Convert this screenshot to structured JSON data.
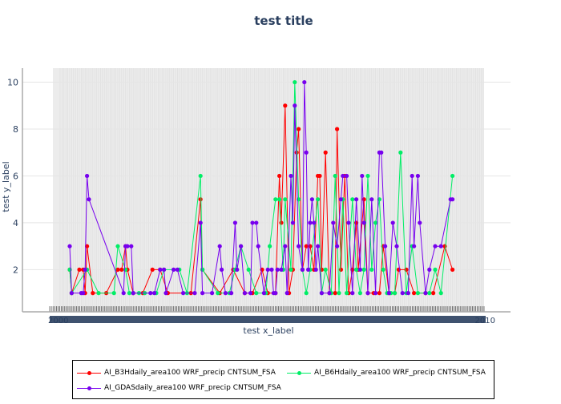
{
  "chart_data": {
    "type": "line",
    "title": "test title",
    "xlabel": "test x_label",
    "ylabel": "test y_label",
    "x_range": [
      0,
      220
    ],
    "ylim": [
      0.2,
      10.6
    ],
    "y_ticks": [
      2,
      4,
      6,
      8,
      10
    ],
    "x_tick_labels_visible": [
      "2000",
      "2010"
    ],
    "grid": true,
    "legend": "bottom, boxed",
    "series": [
      {
        "name": "AI_B3Hdaily_area100 WRF_precip CNTSUM_FSA",
        "color": "#ff0000",
        "points": [
          [
            5,
            2
          ],
          [
            6,
            1
          ],
          [
            10,
            2
          ],
          [
            12,
            2
          ],
          [
            13,
            1
          ],
          [
            14,
            3
          ],
          [
            17,
            1
          ],
          [
            24,
            1
          ],
          [
            30,
            2
          ],
          [
            32,
            2
          ],
          [
            34,
            3
          ],
          [
            35,
            2
          ],
          [
            38,
            1
          ],
          [
            43,
            1
          ],
          [
            48,
            2
          ],
          [
            52,
            2
          ],
          [
            56,
            1
          ],
          [
            68,
            1
          ],
          [
            73,
            5
          ],
          [
            74,
            2
          ],
          [
            83,
            1
          ],
          [
            90,
            2
          ],
          [
            96,
            1
          ],
          [
            100,
            1
          ],
          [
            105,
            2
          ],
          [
            108,
            1
          ],
          [
            112,
            1
          ],
          [
            114,
            6
          ],
          [
            115,
            4
          ],
          [
            117,
            9
          ],
          [
            119,
            1
          ],
          [
            121,
            2
          ],
          [
            123,
            7
          ],
          [
            124,
            8
          ],
          [
            126,
            2
          ],
          [
            128,
            3
          ],
          [
            130,
            3
          ],
          [
            132,
            2
          ],
          [
            134,
            6
          ],
          [
            135,
            6
          ],
          [
            136,
            2
          ],
          [
            138,
            7
          ],
          [
            140,
            1
          ],
          [
            143,
            1
          ],
          [
            144,
            8
          ],
          [
            146,
            2
          ],
          [
            148,
            6
          ],
          [
            150,
            1
          ],
          [
            152,
            2
          ],
          [
            154,
            4
          ],
          [
            155,
            2
          ],
          [
            158,
            5
          ],
          [
            160,
            1
          ],
          [
            163,
            1
          ],
          [
            166,
            1
          ],
          [
            168,
            3
          ],
          [
            171,
            1
          ],
          [
            174,
            1
          ],
          [
            176,
            2
          ],
          [
            180,
            2
          ],
          [
            184,
            1
          ],
          [
            190,
            1
          ],
          [
            194,
            1
          ],
          [
            200,
            3
          ],
          [
            204,
            2
          ]
        ]
      },
      {
        "name": "AI_B6Hdaily_area100 WRF_precip CNTSUM_FSA",
        "color": "#00ee66",
        "points": [
          [
            5,
            2
          ],
          [
            6,
            1
          ],
          [
            14,
            2
          ],
          [
            20,
            1
          ],
          [
            28,
            1
          ],
          [
            30,
            3
          ],
          [
            34,
            2
          ],
          [
            36,
            1
          ],
          [
            41,
            1
          ],
          [
            44,
            1
          ],
          [
            50,
            1
          ],
          [
            54,
            2
          ],
          [
            62,
            2
          ],
          [
            66,
            1
          ],
          [
            73,
            6
          ],
          [
            74,
            2
          ],
          [
            82,
            1
          ],
          [
            88,
            1
          ],
          [
            91,
            2
          ],
          [
            94,
            3
          ],
          [
            98,
            2
          ],
          [
            102,
            1
          ],
          [
            107,
            1
          ],
          [
            109,
            3
          ],
          [
            112,
            5
          ],
          [
            114,
            5
          ],
          [
            116,
            2
          ],
          [
            117,
            5
          ],
          [
            120,
            2
          ],
          [
            122,
            10
          ],
          [
            124,
            5
          ],
          [
            126,
            2
          ],
          [
            128,
            1
          ],
          [
            130,
            2
          ],
          [
            134,
            5
          ],
          [
            136,
            1
          ],
          [
            138,
            2
          ],
          [
            141,
            1
          ],
          [
            143,
            6
          ],
          [
            145,
            1
          ],
          [
            147,
            5
          ],
          [
            149,
            1
          ],
          [
            152,
            5
          ],
          [
            154,
            2
          ],
          [
            156,
            1
          ],
          [
            158,
            2
          ],
          [
            160,
            6
          ],
          [
            162,
            2
          ],
          [
            164,
            4
          ],
          [
            166,
            5
          ],
          [
            168,
            2
          ],
          [
            170,
            1
          ],
          [
            172,
            1
          ],
          [
            174,
            1
          ],
          [
            177,
            7
          ],
          [
            180,
            1
          ],
          [
            183,
            3
          ],
          [
            186,
            1
          ],
          [
            192,
            1
          ],
          [
            195,
            2
          ],
          [
            198,
            1
          ],
          [
            204,
            6
          ]
        ]
      },
      {
        "name": "AI_GDASdaily_area100 WRF_precip CNTSUM_FSA",
        "color": "#7700ee",
        "points": [
          [
            5,
            3
          ],
          [
            6,
            1
          ],
          [
            11,
            1
          ],
          [
            12,
            1
          ],
          [
            13,
            2
          ],
          [
            14,
            6
          ],
          [
            15,
            5
          ],
          [
            33,
            1
          ],
          [
            34,
            3
          ],
          [
            35,
            3
          ],
          [
            37,
            3
          ],
          [
            38,
            1
          ],
          [
            47,
            1
          ],
          [
            49,
            1
          ],
          [
            52,
            2
          ],
          [
            54,
            2
          ],
          [
            55,
            1
          ],
          [
            59,
            2
          ],
          [
            61,
            2
          ],
          [
            64,
            1
          ],
          [
            70,
            1
          ],
          [
            73,
            4
          ],
          [
            74,
            1
          ],
          [
            79,
            1
          ],
          [
            83,
            3
          ],
          [
            84,
            2
          ],
          [
            86,
            1
          ],
          [
            89,
            1
          ],
          [
            91,
            4
          ],
          [
            92,
            2
          ],
          [
            94,
            3
          ],
          [
            96,
            1
          ],
          [
            99,
            1
          ],
          [
            100,
            4
          ],
          [
            102,
            4
          ],
          [
            103,
            3
          ],
          [
            106,
            1
          ],
          [
            108,
            2
          ],
          [
            110,
            2
          ],
          [
            111,
            1
          ],
          [
            112,
            1
          ],
          [
            113,
            2
          ],
          [
            115,
            2
          ],
          [
            117,
            3
          ],
          [
            118,
            1
          ],
          [
            120,
            6
          ],
          [
            121,
            4
          ],
          [
            122,
            9
          ],
          [
            124,
            3
          ],
          [
            126,
            2
          ],
          [
            127,
            10
          ],
          [
            128,
            7
          ],
          [
            129,
            2
          ],
          [
            130,
            4
          ],
          [
            131,
            5
          ],
          [
            132,
            4
          ],
          [
            133,
            2
          ],
          [
            134,
            3
          ],
          [
            136,
            1
          ],
          [
            140,
            1
          ],
          [
            142,
            4
          ],
          [
            144,
            3
          ],
          [
            146,
            5
          ],
          [
            147,
            6
          ],
          [
            149,
            6
          ],
          [
            150,
            4
          ],
          [
            152,
            1
          ],
          [
            154,
            5
          ],
          [
            156,
            2
          ],
          [
            157,
            6
          ],
          [
            158,
            4
          ],
          [
            160,
            1
          ],
          [
            162,
            5
          ],
          [
            164,
            1
          ],
          [
            166,
            7
          ],
          [
            167,
            7
          ],
          [
            169,
            3
          ],
          [
            171,
            1
          ],
          [
            173,
            4
          ],
          [
            175,
            3
          ],
          [
            178,
            1
          ],
          [
            181,
            1
          ],
          [
            183,
            6
          ],
          [
            184,
            3
          ],
          [
            186,
            6
          ],
          [
            187,
            4
          ],
          [
            190,
            1
          ],
          [
            192,
            2
          ],
          [
            195,
            3
          ],
          [
            198,
            3
          ],
          [
            203,
            5
          ],
          [
            204,
            5
          ]
        ]
      }
    ]
  }
}
